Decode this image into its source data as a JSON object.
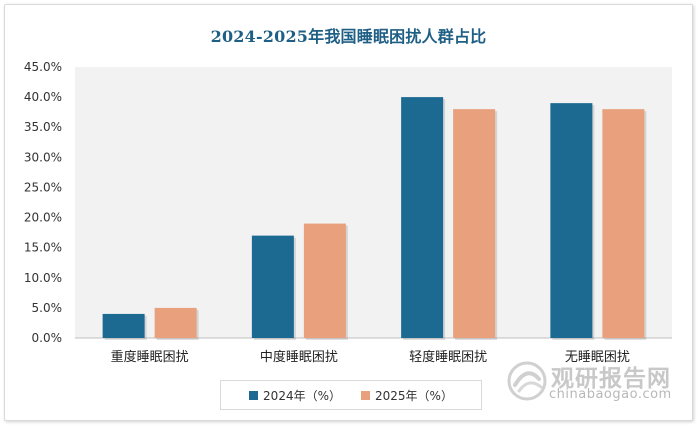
{
  "chart_data": {
    "type": "bar",
    "title": "2024-2025年我国睡眠困扰人群占比",
    "categories": [
      "重度睡眠困扰",
      "中度睡眠困扰",
      "轻度睡眠困扰",
      "无睡眠困扰"
    ],
    "series": [
      {
        "name": "2024年（%）",
        "values": [
          4,
          17,
          40,
          39
        ],
        "color": "#1c6a91"
      },
      {
        "name": "2025年（%）",
        "values": [
          5,
          19,
          38,
          38
        ],
        "color": "#e9a07d"
      }
    ],
    "ylim": [
      0,
      45
    ],
    "yticks": [
      "0.0%",
      "5.0%",
      "10.0%",
      "15.0%",
      "20.0%",
      "25.0%",
      "30.0%",
      "35.0%",
      "40.0%",
      "45.0%"
    ],
    "plot_background": "#f2f2f2",
    "legend_position": "bottom",
    "grid": false
  },
  "watermark": {
    "text_cn": "观研报告网",
    "text_en": "chinabaogao.com"
  }
}
